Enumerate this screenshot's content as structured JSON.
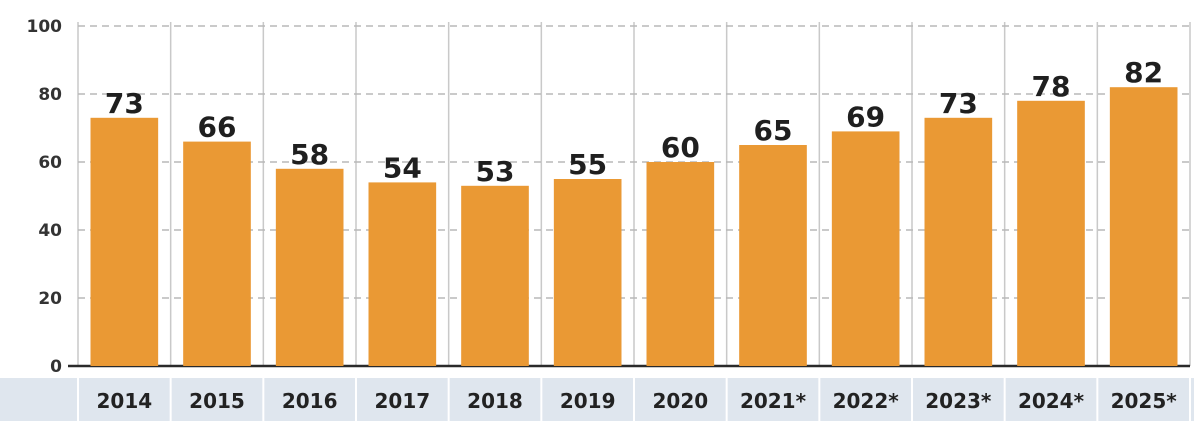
{
  "chart_data": {
    "type": "bar",
    "title": "",
    "xlabel": "",
    "ylabel": "",
    "categories": [
      "2014",
      "2015",
      "2016",
      "2017",
      "2018",
      "2019",
      "2020",
      "2021*",
      "2022*",
      "2023*",
      "2024*",
      "2025*"
    ],
    "values": [
      73,
      66,
      58,
      54,
      53,
      55,
      60,
      65,
      69,
      73,
      78,
      82
    ],
    "ylim": [
      0,
      100
    ],
    "yticks": [
      0,
      20,
      40,
      60,
      80,
      100
    ],
    "grid": "dashed horizontal",
    "bar_color": "#ea9934",
    "axis_band_color": "#dfe6ee",
    "data_labels": true
  }
}
